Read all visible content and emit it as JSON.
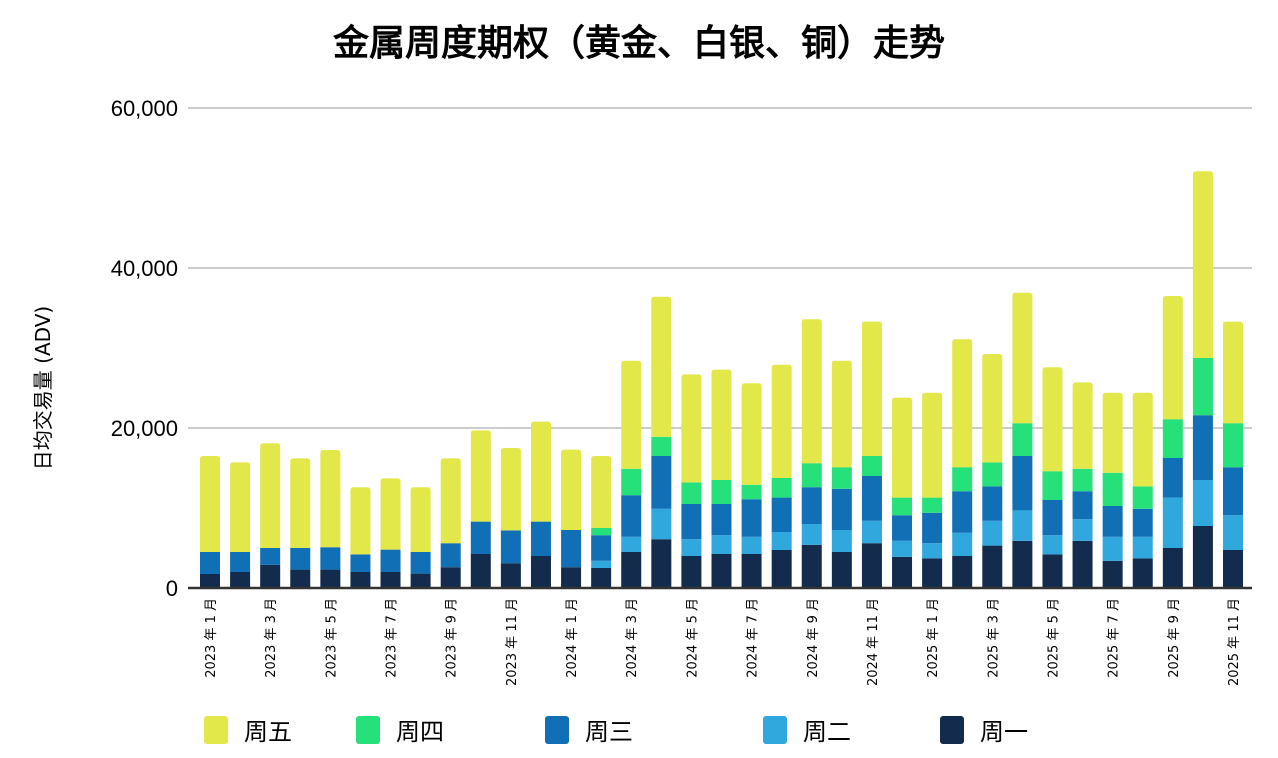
{
  "chart_data": {
    "type": "bar",
    "stacked": true,
    "title": "金属周度期权（黄金、白银、铜）走势",
    "xlabel": "",
    "ylabel": "日均交易量 (ADV)",
    "ylim": [
      0,
      60000
    ],
    "yticks": [
      0,
      20000,
      40000,
      60000
    ],
    "ytick_labels": [
      "0",
      "20,000",
      "40,000",
      "60,000"
    ],
    "grid": true,
    "legend_position": "bottom",
    "categories": [
      "2023-01",
      "2023-02",
      "2023-03",
      "2023-04",
      "2023-05",
      "2023-06",
      "2023-07",
      "2023-08",
      "2023-09",
      "2023-10",
      "2023-11",
      "2023-12",
      "2024-01",
      "2024-02",
      "2024-03",
      "2024-04",
      "2024-05",
      "2024-06",
      "2024-07",
      "2024-08",
      "2024-09",
      "2024-10",
      "2024-11",
      "2024-12",
      "2025-01",
      "2025-02",
      "2025-03",
      "2025-04",
      "2025-05",
      "2025-06",
      "2025-07",
      "2025-08",
      "2025-09",
      "2025-10",
      "2025-11"
    ],
    "xtick_labels": [
      "2023 年 1 月",
      "",
      "2023 年 3 月",
      "",
      "2023 年 5 月",
      "",
      "2023 年 7 月",
      "",
      "2023 年 9 月",
      "",
      "2023 年 11 月",
      "",
      "2024 年 1 月",
      "",
      "2024 年 3 月",
      "",
      "2024 年 5 月",
      "",
      "2024 年 7 月",
      "",
      "2024 年 9 月",
      "",
      "2024 年 11 月",
      "",
      "2025 年 1 月",
      "",
      "2025 年 3 月",
      "",
      "2025 年 5 月",
      "",
      "2025 年 7 月",
      "",
      "2025 年 9 月",
      "",
      "2025 年 11 月"
    ],
    "series": [
      {
        "name": "周一",
        "color": "#132c4d",
        "values": [
          1750,
          2000,
          2900,
          2300,
          2300,
          2000,
          2000,
          1800,
          2600,
          4250,
          3100,
          4000,
          2600,
          2500,
          4500,
          6100,
          4000,
          4250,
          4250,
          4750,
          5400,
          4500,
          5600,
          3900,
          3700,
          4000,
          5300,
          5900,
          4200,
          5900,
          3400,
          3700,
          5000,
          7750,
          4750
        ]
      },
      {
        "name": "周二",
        "color": "#30a8de",
        "values": [
          0,
          0,
          0,
          0,
          0,
          0,
          0,
          0,
          0,
          0,
          0,
          0,
          0,
          900,
          1900,
          3800,
          2100,
          2350,
          2150,
          2250,
          2600,
          2750,
          2800,
          2000,
          1900,
          2900,
          3100,
          3800,
          2400,
          2700,
          3000,
          2700,
          6300,
          5750,
          4350
        ]
      },
      {
        "name": "周三",
        "color": "#1170b5",
        "values": [
          2750,
          2500,
          2100,
          2700,
          2800,
          2200,
          2800,
          2700,
          3000,
          4050,
          4100,
          4300,
          4650,
          3200,
          5200,
          6600,
          4400,
          3900,
          4700,
          4300,
          4600,
          5150,
          5600,
          3200,
          3800,
          5200,
          4300,
          6800,
          4400,
          3500,
          3850,
          3500,
          4950,
          8100,
          6000
        ]
      },
      {
        "name": "周四",
        "color": "#26e07a",
        "values": [
          0,
          0,
          0,
          0,
          0,
          0,
          0,
          0,
          0,
          0,
          0,
          0,
          0,
          900,
          3300,
          2400,
          2700,
          3000,
          1800,
          2450,
          3000,
          2700,
          2500,
          2200,
          1900,
          3000,
          3000,
          4100,
          3600,
          2800,
          4150,
          2800,
          4850,
          7150,
          5500
        ]
      },
      {
        "name": "周五",
        "color": "#e3e84a",
        "values": [
          12000,
          11200,
          13100,
          11200,
          12150,
          8400,
          8900,
          8100,
          10600,
          11400,
          10300,
          12500,
          10050,
          9000,
          13500,
          17500,
          13500,
          13800,
          12700,
          14150,
          18000,
          13300,
          16800,
          12500,
          13100,
          16000,
          13550,
          16300,
          13000,
          10800,
          10000,
          11700,
          15400,
          23350,
          12700
        ]
      }
    ],
    "legend_order": [
      "周五",
      "周四",
      "周三",
      "周二",
      "周一"
    ]
  }
}
